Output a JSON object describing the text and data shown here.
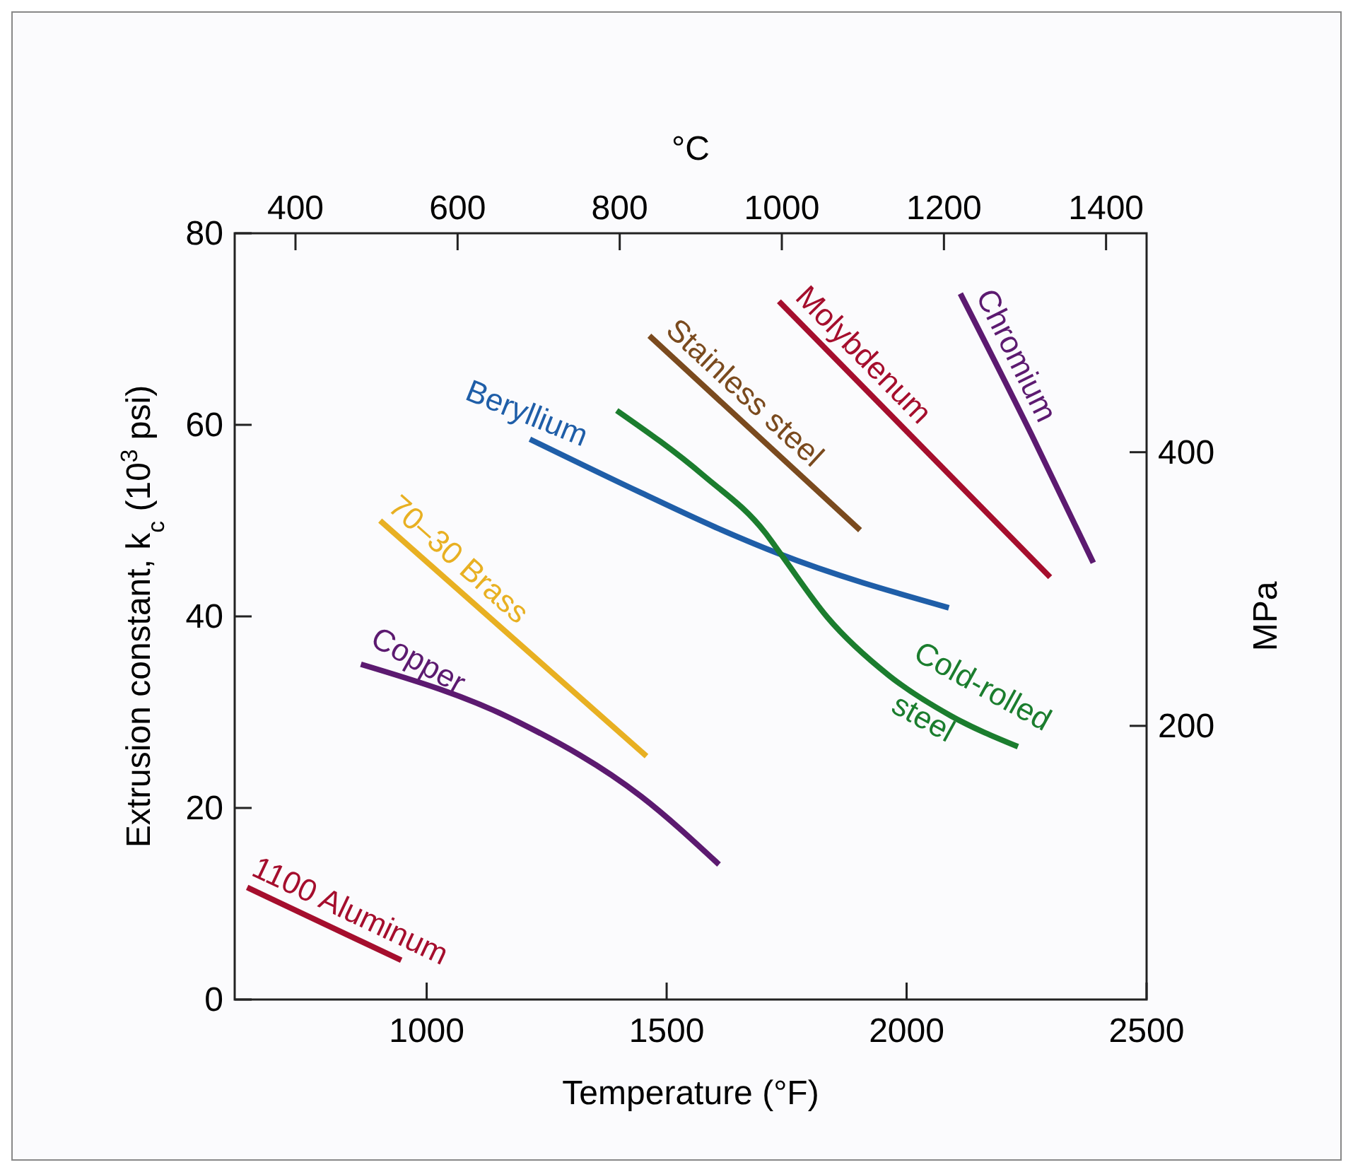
{
  "chart_data": {
    "type": "line",
    "xlabel": "Temperature (°F)",
    "ylabel": "Extrusion constant, k$_{c}$ (10$^{3}$ psi)",
    "x2label": "°C",
    "y2label": "MPa",
    "xlim": [
      600,
      2500
    ],
    "xticks": [
      1000,
      1500,
      2000,
      2500
    ],
    "ylim": [
      0,
      80
    ],
    "yticks": [
      0,
      20,
      40,
      60,
      80
    ],
    "x2lim": [
      325,
      1450
    ],
    "x2ticks": [
      400,
      600,
      800,
      1000,
      1200,
      1400
    ],
    "y2lim": [
      0,
      560
    ],
    "y2ticks": [
      200,
      400
    ],
    "grid": false,
    "line_style": "solid",
    "marker": "none",
    "series": [
      {
        "name": "1100 Aluminum",
        "color": "#a50e2d",
        "x": [
          626,
          947
        ],
        "values": [
          11.7,
          4.1
        ]
      },
      {
        "name": "Copper",
        "color": "#5c1a70",
        "x": [
          863,
          1190,
          1447,
          1609
        ],
        "values": [
          35.0,
          29.0,
          21.2,
          14.1
        ]
      },
      {
        "name": "70–30 Brass",
        "color": "#e8b022",
        "x": [
          903,
          1458
        ],
        "values": [
          50.0,
          25.4
        ]
      },
      {
        "name": "Beryllium",
        "color": "#1f5ea8",
        "x": [
          1215,
          1447,
          1602,
          1731,
          2088
        ],
        "values": [
          58.5,
          52.9,
          49.3,
          46.6,
          40.9
        ]
      },
      {
        "name": "Cold-rolled steel",
        "color": "#1b7d2e",
        "x": [
          1396,
          1577,
          1706,
          1738,
          1835,
          1964,
          2093,
          2232
        ],
        "values": [
          61.5,
          54.7,
          48.7,
          46.5,
          39.9,
          33.8,
          29.6,
          26.4
        ]
      },
      {
        "name": "Stainless steel",
        "color": "#7a4a1e",
        "x": [
          1464,
          1903
        ],
        "values": [
          69.3,
          49.0
        ]
      },
      {
        "name": "Molybdenum",
        "color": "#a50e2d",
        "x": [
          1734,
          2299
        ],
        "values": [
          72.9,
          44.1
        ]
      },
      {
        "name": "Chromium",
        "color": "#5c1a70",
        "x": [
          2112,
          2260,
          2389
        ],
        "values": [
          73.7,
          59.0,
          45.6
        ]
      }
    ]
  }
}
